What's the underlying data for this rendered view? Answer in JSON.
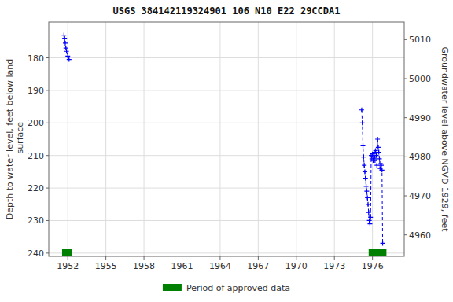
{
  "chart_data": {
    "type": "line",
    "title": "USGS 384142119324901 106  N10 E22 29CCDA1",
    "y_label": "Depth to water level, feet below land\n surface",
    "y2_label": "Groundwater level above NGVD 1929, feet",
    "xlim": [
      1950.5,
      1978.5
    ],
    "xticks": [
      1952,
      1955,
      1958,
      1961,
      1964,
      1967,
      1970,
      1973,
      1976
    ],
    "ylim": [
      241,
      169
    ],
    "yticks": [
      180,
      190,
      200,
      210,
      220,
      230,
      240
    ],
    "y2lim": [
      4954.5,
      5014.5
    ],
    "y2ticks": [
      4960,
      4970,
      4980,
      4990,
      5000,
      5010
    ],
    "grid": true,
    "legend": "bottom",
    "series": [
      {
        "color": "#0000ff",
        "marker": "plus",
        "line_style": "dashed",
        "x": [
          1951.7,
          1951.75,
          1951.8,
          1951.85,
          1951.9,
          1952.0,
          1952.1
        ],
        "values": [
          173.0,
          174.0,
          175.5,
          177.0,
          178.0,
          179.5,
          180.5
        ]
      },
      {
        "color": "#0000ff",
        "marker": "plus",
        "line_style": "dashed",
        "x": [
          1975.15,
          1975.2,
          1975.25,
          1975.3,
          1975.35,
          1975.4,
          1975.45,
          1975.5,
          1975.55,
          1975.6,
          1975.65,
          1975.7,
          1975.75,
          1975.8,
          1975.85,
          1975.9,
          1975.95,
          1976.0,
          1976.05,
          1976.1,
          1976.15,
          1976.2,
          1976.25,
          1976.3,
          1976.35,
          1976.4,
          1976.45,
          1976.5,
          1976.55,
          1976.6,
          1976.65,
          1976.7,
          1976.75,
          1976.8
        ],
        "values": [
          196.0,
          200.0,
          207.0,
          210.5,
          213.0,
          215.0,
          217.0,
          219.5,
          221.0,
          223.0,
          225.0,
          227.5,
          230.0,
          231.0,
          229.0,
          210.0,
          211.0,
          209.5,
          211.5,
          210.0,
          209.0,
          211.5,
          208.5,
          210.0,
          213.0,
          205.0,
          207.5,
          209.0,
          211.0,
          214.0,
          212.5,
          213.0,
          214.5,
          237.0
        ]
      },
      {
        "name": "Period of approved data",
        "type": "range",
        "color": "#008000",
        "start": [
          1951.55,
          1975.7
        ],
        "end": [
          1952.3,
          1977.1
        ],
        "values": [
          240.0,
          240.0
        ],
        "half_height": 1.2
      }
    ]
  }
}
